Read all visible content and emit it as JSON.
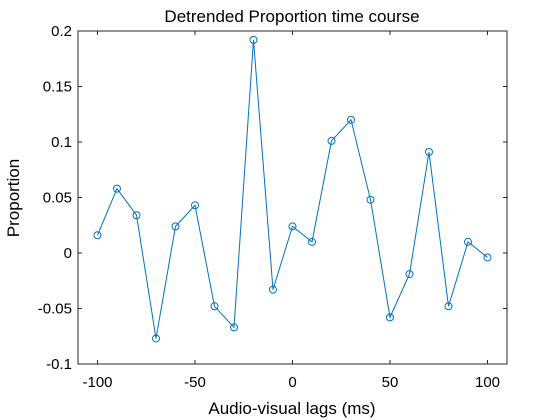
{
  "chart_data": {
    "type": "line",
    "title": "Detrended Proportion time course",
    "xlabel": "Audio-visual lags (ms)",
    "ylabel": "Proportion",
    "xlim": [
      -110,
      110
    ],
    "ylim": [
      -0.1,
      0.2
    ],
    "xticks": [
      -100,
      -50,
      0,
      50,
      100
    ],
    "xtick_labels": [
      "-100",
      "-50",
      "0",
      "50",
      "100"
    ],
    "yticks": [
      -0.1,
      -0.05,
      0,
      0.05,
      0.1,
      0.15,
      0.2
    ],
    "ytick_labels": [
      "-0.1",
      "-0.05",
      "0",
      "0.05",
      "0.1",
      "0.15",
      "0.2"
    ],
    "grid": false,
    "marker": "circle",
    "color": "#0072BD",
    "series": [
      {
        "x": [
          -100,
          -90,
          -80,
          -70,
          -60,
          -50,
          -40,
          -30,
          -20,
          -10,
          0,
          10,
          20,
          30,
          40,
          50,
          60,
          70,
          80,
          90,
          100
        ],
        "y": [
          0.016,
          0.058,
          0.034,
          -0.077,
          0.024,
          0.043,
          -0.048,
          -0.067,
          0.192,
          -0.033,
          0.024,
          0.01,
          0.101,
          0.12,
          0.048,
          -0.058,
          -0.019,
          0.091,
          -0.048,
          0.01,
          -0.004
        ]
      }
    ]
  }
}
